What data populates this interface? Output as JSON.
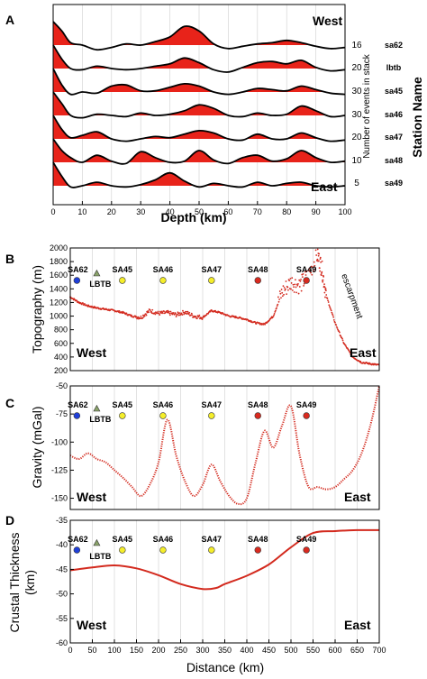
{
  "panel_a": {
    "letter": "A",
    "xlabel": "Depth (km)",
    "right_axis_label": "Number of events in stack",
    "station_axis_label": "Station Name",
    "west_label": "West",
    "east_label": "East",
    "x_ticks": [
      "0",
      "10",
      "20",
      "30",
      "40",
      "50",
      "60",
      "70",
      "80",
      "90",
      "100"
    ],
    "counts": [
      "16",
      "20",
      "30",
      "30",
      "20",
      "10",
      "5"
    ],
    "stations": [
      "sa62",
      "lbtb",
      "sa45",
      "sa46",
      "sa47",
      "sa48",
      "sa49"
    ]
  },
  "panel_b": {
    "letter": "B",
    "ylabel": "Topography (m)",
    "west_label": "West",
    "east_label": "East",
    "annotation": "escarpment",
    "y_ticks": [
      "2000",
      "1800",
      "1600",
      "1400",
      "1200",
      "1000",
      "800",
      "600",
      "400",
      "200"
    ]
  },
  "panel_c": {
    "letter": "C",
    "ylabel": "Gravity (mGal)",
    "west_label": "West",
    "east_label": "East",
    "y_ticks": [
      "-50",
      "-75",
      "-100",
      "-125",
      "-150"
    ]
  },
  "panel_d": {
    "letter": "D",
    "ylabel_line1": "Crustal Thickness",
    "ylabel_line2": "(km)",
    "west_label": "West",
    "east_label": "East",
    "y_ticks": [
      "-35",
      "-40",
      "-45",
      "-50",
      "-55",
      "-60"
    ]
  },
  "bottom_xlabel": "Distance (km)",
  "x_dist_ticks": [
    "0",
    "50",
    "100",
    "150",
    "200",
    "250",
    "300",
    "350",
    "400",
    "450",
    "500",
    "550",
    "600",
    "650",
    "700"
  ],
  "station_markers": [
    {
      "name": "SA62",
      "x_km": 15,
      "color": "#1f3fd9"
    },
    {
      "name": "LBTB",
      "x_km": 60,
      "color": "#8aa36a"
    },
    {
      "name": "SA45",
      "x_km": 118,
      "color": "#f5ee2a"
    },
    {
      "name": "SA46",
      "x_km": 210,
      "color": "#f5ee2a"
    },
    {
      "name": "SA47",
      "x_km": 320,
      "color": "#f5ee2a"
    },
    {
      "name": "SA48",
      "x_km": 425,
      "color": "#d92a1f"
    },
    {
      "name": "SA49",
      "x_km": 535,
      "color": "#d92a1f"
    }
  ],
  "chart_data": [
    {
      "type": "line",
      "title": "",
      "xlabel": "Depth (km)",
      "ylabel": "Number of events in stack",
      "xlim": [
        0,
        100
      ],
      "series": [
        {
          "name": "sa62",
          "events": 16,
          "x": [
            0,
            3,
            6,
            10,
            15,
            20,
            25,
            30,
            35,
            40,
            45,
            50,
            55,
            60,
            65,
            70,
            75,
            80,
            85,
            90,
            95,
            100
          ],
          "y": [
            1.0,
            0.6,
            0.1,
            0.0,
            -0.2,
            -0.1,
            0.05,
            0.0,
            0.15,
            0.35,
            0.8,
            0.6,
            0.05,
            -0.15,
            -0.05,
            0.05,
            0.1,
            0.2,
            0.1,
            -0.05,
            -0.15,
            -0.1
          ]
        },
        {
          "name": "lbtb",
          "events": 20,
          "x": [
            0,
            3,
            6,
            10,
            15,
            20,
            25,
            30,
            35,
            40,
            45,
            50,
            55,
            60,
            65,
            70,
            75,
            80,
            85,
            90,
            95,
            100
          ],
          "y": [
            1.0,
            0.4,
            0.0,
            -0.05,
            0.1,
            0.0,
            -0.05,
            0.0,
            0.1,
            0.2,
            0.45,
            0.25,
            -0.05,
            -0.15,
            0.05,
            0.25,
            0.3,
            0.2,
            0.35,
            0.05,
            -0.1,
            -0.05
          ]
        },
        {
          "name": "sa45",
          "events": 30,
          "x": [
            0,
            3,
            6,
            10,
            15,
            20,
            25,
            30,
            35,
            40,
            45,
            50,
            55,
            60,
            65,
            70,
            75,
            80,
            85,
            90,
            95,
            100
          ],
          "y": [
            1.0,
            0.3,
            -0.1,
            0.0,
            -0.05,
            0.25,
            0.3,
            0.05,
            0.05,
            0.2,
            0.35,
            0.25,
            0.0,
            -0.1,
            0.0,
            0.15,
            0.1,
            0.05,
            0.25,
            0.1,
            -0.05,
            -0.1
          ]
        },
        {
          "name": "sa46",
          "events": 30,
          "x": [
            0,
            3,
            6,
            10,
            15,
            20,
            25,
            30,
            35,
            40,
            45,
            50,
            55,
            60,
            65,
            70,
            75,
            80,
            85,
            90,
            95,
            100
          ],
          "y": [
            1.0,
            0.5,
            0.0,
            -0.1,
            0.05,
            0.0,
            -0.05,
            0.1,
            0.0,
            0.05,
            0.2,
            0.45,
            0.3,
            0.0,
            -0.05,
            0.1,
            0.0,
            0.05,
            0.4,
            0.2,
            -0.05,
            0.0
          ]
        },
        {
          "name": "sa47",
          "events": 20,
          "x": [
            0,
            3,
            6,
            10,
            15,
            20,
            25,
            30,
            35,
            40,
            45,
            50,
            55,
            60,
            65,
            70,
            75,
            80,
            85,
            90,
            95,
            100
          ],
          "y": [
            1.0,
            0.4,
            0.05,
            0.15,
            0.3,
            0.0,
            -0.1,
            0.0,
            0.1,
            0.05,
            0.2,
            0.35,
            0.25,
            0.0,
            -0.05,
            0.2,
            0.0,
            0.0,
            0.25,
            0.05,
            -0.1,
            -0.05
          ]
        },
        {
          "name": "sa48",
          "events": 10,
          "x": [
            0,
            3,
            6,
            10,
            15,
            20,
            25,
            30,
            35,
            40,
            45,
            50,
            55,
            60,
            65,
            70,
            75,
            80,
            85,
            90,
            95,
            100
          ],
          "y": [
            1.0,
            0.5,
            0.2,
            0.0,
            0.3,
            0.05,
            -0.05,
            0.45,
            0.2,
            0.0,
            0.05,
            0.5,
            0.1,
            -0.05,
            0.2,
            0.3,
            0.05,
            0.15,
            0.5,
            0.2,
            0.0,
            0.05
          ]
        },
        {
          "name": "sa49",
          "events": 5,
          "x": [
            0,
            3,
            6,
            10,
            15,
            20,
            25,
            30,
            35,
            40,
            45,
            50,
            55,
            60,
            65,
            70,
            75,
            80,
            85,
            90,
            95,
            100
          ],
          "y": [
            1.0,
            0.4,
            -0.05,
            0.0,
            0.15,
            0.0,
            -0.05,
            0.05,
            0.25,
            0.55,
            0.2,
            -0.05,
            0.1,
            0.0,
            -0.05,
            0.15,
            0.0,
            0.1,
            0.15,
            0.0,
            -0.05,
            0.0
          ]
        }
      ]
    },
    {
      "type": "scatter",
      "title": "",
      "xlabel": "Distance (km)",
      "ylabel": "Topography (m)",
      "xlim": [
        0,
        700
      ],
      "ylim": [
        200,
        2000
      ],
      "x": [
        0,
        20,
        40,
        60,
        80,
        100,
        120,
        140,
        160,
        180,
        200,
        220,
        240,
        260,
        280,
        300,
        320,
        340,
        360,
        380,
        400,
        420,
        440,
        460,
        480,
        500,
        520,
        540,
        560,
        570,
        580,
        600,
        620,
        640,
        660,
        680,
        700
      ],
      "y": [
        1280,
        1200,
        1150,
        1120,
        1100,
        1080,
        1050,
        1000,
        980,
        1080,
        1040,
        1050,
        1020,
        1060,
        1000,
        980,
        1080,
        1050,
        1000,
        980,
        950,
        900,
        880,
        1000,
        1350,
        1500,
        1450,
        1600,
        1900,
        1700,
        1300,
        900,
        600,
        400,
        320,
        300,
        280
      ]
    },
    {
      "type": "scatter",
      "title": "",
      "xlabel": "Distance (km)",
      "ylabel": "Gravity (mGal)",
      "xlim": [
        0,
        700
      ],
      "ylim": [
        -160,
        -50
      ],
      "x": [
        0,
        20,
        40,
        60,
        80,
        100,
        120,
        140,
        160,
        180,
        200,
        220,
        240,
        260,
        280,
        300,
        320,
        340,
        360,
        380,
        400,
        420,
        440,
        460,
        480,
        500,
        520,
        540,
        560,
        580,
        600,
        620,
        640,
        660,
        680,
        700
      ],
      "y": [
        -112,
        -115,
        -110,
        -115,
        -118,
        -125,
        -132,
        -140,
        -148,
        -138,
        -118,
        -80,
        -112,
        -135,
        -148,
        -138,
        -120,
        -135,
        -148,
        -155,
        -150,
        -118,
        -90,
        -105,
        -85,
        -68,
        -112,
        -140,
        -140,
        -142,
        -140,
        -133,
        -125,
        -110,
        -85,
        -50
      ]
    },
    {
      "type": "line",
      "title": "",
      "xlabel": "Distance (km)",
      "ylabel": "Crustal Thickness (km)",
      "xlim": [
        0,
        700
      ],
      "ylim": [
        -60,
        -35
      ],
      "x": [
        0,
        50,
        100,
        150,
        200,
        250,
        300,
        330,
        350,
        400,
        450,
        500,
        550,
        600,
        650,
        700
      ],
      "y": [
        -45.2,
        -44.6,
        -44.2,
        -44.8,
        -46.2,
        -48.0,
        -49.0,
        -48.8,
        -48.0,
        -46.3,
        -44.0,
        -40.5,
        -37.6,
        -37.2,
        -37.0,
        -37.0
      ]
    }
  ]
}
